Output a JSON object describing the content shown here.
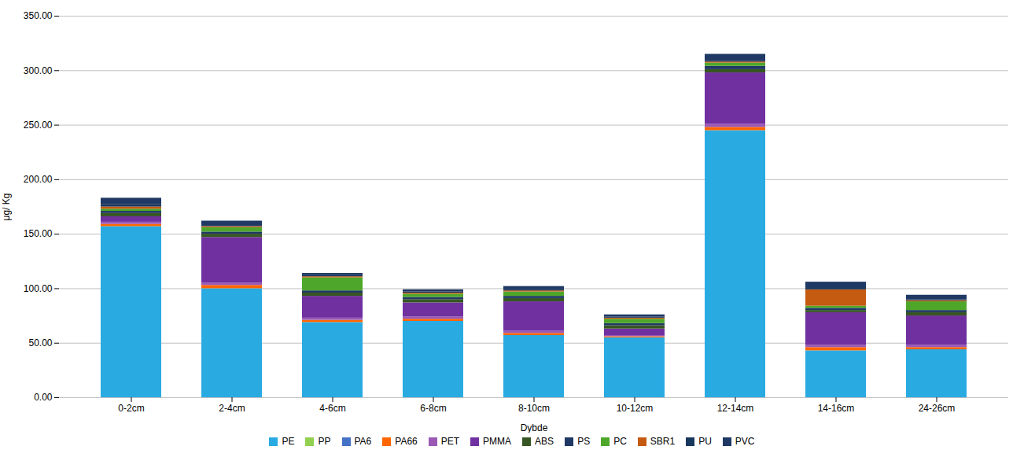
{
  "chart_data": {
    "type": "bar",
    "stacked": true,
    "xlabel": "Dybde",
    "ylabel": "μg/ Kg",
    "categories": [
      "0-2cm",
      "2-4cm",
      "4-6cm",
      "6-8cm",
      "8-10cm",
      "10-12cm",
      "12-14cm",
      "14-16cm",
      "24-26cm"
    ],
    "series": [
      {
        "name": "PE",
        "color": "#29ABE2",
        "values": [
          157,
          100,
          69,
          70,
          57,
          55,
          245,
          43,
          44
        ]
      },
      {
        "name": "PP",
        "color": "#92D050",
        "values": [
          0,
          0,
          0,
          0,
          0,
          0,
          0,
          0,
          0
        ]
      },
      {
        "name": "PA6",
        "color": "#4472C4",
        "values": [
          0,
          0,
          0,
          0,
          0,
          0,
          0,
          0,
          0
        ]
      },
      {
        "name": "PA66",
        "color": "#FF6600",
        "values": [
          2,
          3,
          2,
          2,
          2,
          1,
          3,
          3,
          2
        ]
      },
      {
        "name": "PET",
        "color": "#9B59B6",
        "values": [
          2,
          2,
          2,
          2,
          2,
          1,
          3,
          2,
          2
        ]
      },
      {
        "name": "PMMA",
        "color": "#7030A0",
        "values": [
          5,
          42,
          20,
          13,
          27,
          6,
          47,
          30,
          27
        ]
      },
      {
        "name": "ABS",
        "color": "#375623",
        "values": [
          3,
          3,
          3,
          3,
          3,
          3,
          3,
          2,
          3
        ]
      },
      {
        "name": "PS",
        "color": "#1F3864",
        "values": [
          2,
          2,
          2,
          2,
          2,
          2,
          3,
          2,
          2
        ]
      },
      {
        "name": "PC",
        "color": "#4EA72A",
        "values": [
          2,
          4,
          12,
          3,
          4,
          4,
          3,
          2,
          8
        ]
      },
      {
        "name": "SBR1",
        "color": "#C55A11",
        "values": [
          2,
          1,
          1,
          1,
          1,
          1,
          1,
          15,
          1
        ]
      },
      {
        "name": "PU",
        "color": "#17375E",
        "values": [
          2,
          1,
          1,
          1,
          1,
          1,
          1,
          2,
          1
        ]
      },
      {
        "name": "PVC",
        "color": "#1F3864",
        "values": [
          6,
          4,
          2,
          2,
          3,
          2,
          6,
          5,
          4
        ]
      }
    ],
    "ylim": [
      0,
      350
    ],
    "yticks": [
      {
        "value": 0,
        "label": "0.00"
      },
      {
        "value": 50,
        "label": "50.00"
      },
      {
        "value": 100,
        "label": "100.00"
      },
      {
        "value": 150,
        "label": "150.00"
      },
      {
        "value": 200,
        "label": "200.00"
      },
      {
        "value": 250,
        "label": "250.00"
      },
      {
        "value": 300,
        "label": "300.00"
      },
      {
        "value": 350,
        "label": "350.00"
      }
    ],
    "grid": true,
    "legend": "bottom"
  }
}
